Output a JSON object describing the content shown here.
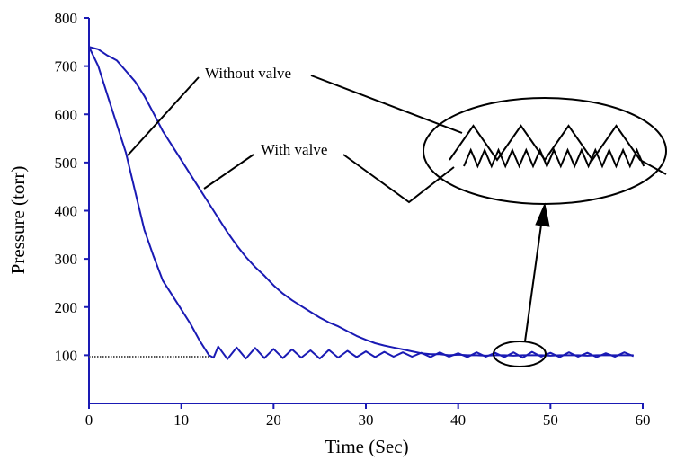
{
  "chart_data": {
    "type": "line",
    "title": "",
    "xlabel": "Time (Sec)",
    "ylabel": "Pressure (torr)",
    "xlim": [
      0,
      60
    ],
    "ylim": [
      0,
      800
    ],
    "x_ticks": [
      0,
      10,
      20,
      30,
      40,
      50,
      60
    ],
    "y_ticks": [
      100,
      200,
      300,
      400,
      500,
      600,
      700,
      800
    ],
    "x_tick_labels": [
      "0",
      "10",
      "20",
      "30",
      "40",
      "50",
      "60"
    ],
    "y_tick_labels": [
      "100",
      "200",
      "300",
      "400",
      "500",
      "600",
      "700",
      "800"
    ],
    "grid": false,
    "legend": "none",
    "line_color": "#1a1ab4",
    "series": [
      {
        "name": "Without valve",
        "x": [
          0,
          1,
          2,
          3,
          4,
          5,
          6,
          7,
          8,
          9,
          10,
          11,
          12,
          13,
          13.5,
          14,
          15,
          16,
          17,
          18,
          19,
          20,
          21,
          22,
          23,
          24,
          25,
          26,
          27,
          28,
          29,
          30,
          31,
          32,
          33,
          34,
          35,
          36,
          37,
          38,
          39,
          40,
          41,
          42,
          43,
          44,
          45,
          46,
          47,
          48,
          49,
          50,
          51,
          52,
          53,
          54,
          55,
          56,
          57,
          58,
          59
        ],
        "y": [
          740,
          700,
          640,
          580,
          520,
          440,
          360,
          305,
          255,
          225,
          195,
          165,
          130,
          100,
          95,
          118,
          92,
          116,
          93,
          115,
          94,
          113,
          94,
          112,
          95,
          110,
          93,
          111,
          95,
          109,
          96,
          108,
          96,
          107,
          97,
          106,
          97,
          105,
          96,
          106,
          97,
          104,
          96,
          106,
          97,
          105,
          96,
          106,
          95,
          107,
          97,
          105,
          96,
          106,
          97,
          105,
          96,
          104,
          97,
          106,
          98
        ]
      },
      {
        "name": "With valve",
        "x": [
          0,
          1,
          2,
          3,
          4,
          5,
          6,
          7,
          8,
          9,
          10,
          11,
          12,
          13,
          14,
          15,
          16,
          17,
          18,
          19,
          20,
          21,
          22,
          23,
          24,
          25,
          26,
          27,
          28,
          29,
          30,
          31,
          32,
          33,
          34,
          35,
          36,
          37,
          38,
          39,
          40,
          41,
          42,
          43,
          44,
          45,
          46,
          47,
          48,
          49,
          50,
          51,
          52,
          53,
          54,
          55,
          56,
          57,
          58,
          59
        ],
        "y": [
          740,
          735,
          722,
          712,
          690,
          668,
          638,
          602,
          565,
          535,
          505,
          475,
          445,
          415,
          385,
          355,
          328,
          304,
          283,
          265,
          245,
          228,
          214,
          202,
          190,
          178,
          168,
          160,
          150,
          140,
          132,
          125,
          120,
          116,
          112,
          108,
          104,
          102,
          102,
          100,
          101,
          100,
          100,
          99,
          100,
          100,
          99,
          100,
          100,
          100,
          99,
          100,
          100,
          100,
          99,
          100,
          100,
          100,
          100,
          100
        ]
      }
    ],
    "reference_line": {
      "name": "",
      "x": [
        0,
        13
      ],
      "y": 97,
      "style": "dotted"
    },
    "annotations": {
      "without_valve": "Without valve",
      "with_valve": "With valve"
    }
  }
}
